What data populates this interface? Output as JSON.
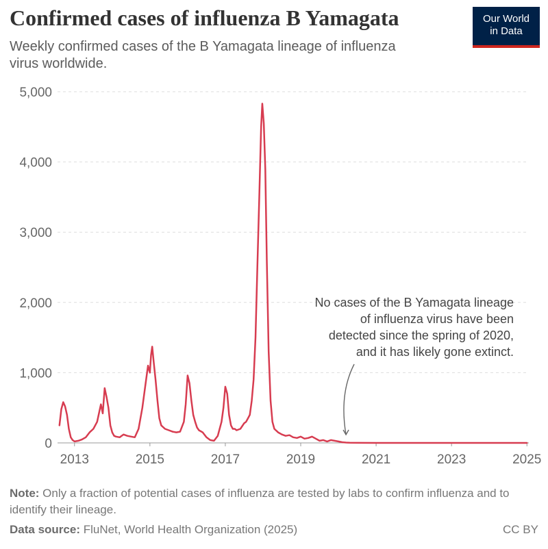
{
  "header": {
    "title": "Confirmed cases of influenza B Yamagata",
    "subtitle": "Weekly confirmed cases of the B Yamagata lineage of influenza virus worldwide.",
    "logo_line1": "Our World",
    "logo_line2": "in Data"
  },
  "footer": {
    "note_label": "Note:",
    "note_text": " Only a fraction of potential cases of influenza are tested by labs to confirm influenza and to identify their lineage.",
    "source_label": "Data source:",
    "source_text": " FluNet, World Health Organization (2025)",
    "license": "CC BY"
  },
  "colors": {
    "series": "#d73c50",
    "grid": "#dddddd",
    "logo_bg": "#002147",
    "logo_accent": "#ce261e"
  },
  "chart_data": {
    "type": "line",
    "title": "Confirmed cases of influenza B Yamagata",
    "subtitle": "Weekly confirmed cases of the B Yamagata lineage of influenza virus worldwide.",
    "xlabel": "",
    "ylabel": "",
    "xlim": [
      2012.55,
      2025.05
    ],
    "ylim": [
      0,
      5000
    ],
    "y_ticks": [
      0,
      1000,
      2000,
      3000,
      4000,
      5000
    ],
    "y_tick_labels": [
      "0",
      "1,000",
      "2,000",
      "3,000",
      "4,000",
      "5,000"
    ],
    "x_ticks": [
      2013,
      2015,
      2017,
      2019,
      2021,
      2023,
      2025
    ],
    "x_tick_labels": [
      "2013",
      "2015",
      "2017",
      "2019",
      "2021",
      "2023",
      "2025"
    ],
    "grid": true,
    "legend": "none",
    "annotation": {
      "lines": [
        "No cases of the B Yamagata lineage",
        "of influenza virus have been",
        "detected since the spring of 2020,",
        "and it has likely gone extinct."
      ],
      "points_to": [
        2020.2,
        0
      ]
    },
    "series": [
      {
        "color": "#d73c50",
        "x": [
          2012.6,
          2012.65,
          2012.7,
          2012.75,
          2012.8,
          2012.85,
          2012.9,
          2012.95,
          2013.0,
          2013.1,
          2013.2,
          2013.3,
          2013.4,
          2013.5,
          2013.6,
          2013.7,
          2013.75,
          2013.8,
          2013.85,
          2013.9,
          2013.95,
          2014.0,
          2014.05,
          2014.1,
          2014.2,
          2014.3,
          2014.4,
          2014.5,
          2014.6,
          2014.7,
          2014.8,
          2014.9,
          2014.95,
          2015.0,
          2015.03,
          2015.06,
          2015.1,
          2015.15,
          2015.2,
          2015.25,
          2015.3,
          2015.4,
          2015.5,
          2015.6,
          2015.7,
          2015.8,
          2015.9,
          2015.95,
          2016.0,
          2016.05,
          2016.1,
          2016.15,
          2016.2,
          2016.25,
          2016.3,
          2016.4,
          2016.5,
          2016.6,
          2016.7,
          2016.8,
          2016.9,
          2016.95,
          2017.0,
          2017.05,
          2017.1,
          2017.15,
          2017.2,
          2017.25,
          2017.3,
          2017.4,
          2017.5,
          2017.55,
          2017.6,
          2017.65,
          2017.7,
          2017.75,
          2017.8,
          2017.85,
          2017.9,
          2017.95,
          2017.98,
          2018.02,
          2018.06,
          2018.1,
          2018.15,
          2018.2,
          2018.25,
          2018.3,
          2018.4,
          2018.5,
          2018.6,
          2018.7,
          2018.8,
          2018.9,
          2019.0,
          2019.1,
          2019.2,
          2019.3,
          2019.4,
          2019.5,
          2019.6,
          2019.7,
          2019.8,
          2019.9,
          2020.0,
          2020.1,
          2020.2,
          2020.3,
          2020.5,
          2021.0,
          2021.5,
          2022.0,
          2022.5,
          2023.0,
          2023.5,
          2024.0,
          2024.5,
          2025.0
        ],
        "y": [
          250,
          480,
          580,
          520,
          400,
          200,
          80,
          40,
          20,
          30,
          50,
          80,
          150,
          200,
          300,
          550,
          420,
          780,
          650,
          500,
          250,
          150,
          100,
          90,
          80,
          120,
          100,
          90,
          80,
          200,
          500,
          900,
          1100,
          1000,
          1250,
          1370,
          1150,
          900,
          600,
          350,
          250,
          200,
          180,
          160,
          150,
          160,
          300,
          550,
          960,
          850,
          600,
          400,
          300,
          220,
          180,
          150,
          80,
          40,
          30,
          100,
          300,
          500,
          800,
          700,
          400,
          250,
          200,
          200,
          180,
          200,
          280,
          300,
          350,
          400,
          600,
          900,
          1500,
          2500,
          3500,
          4500,
          4830,
          4550,
          3900,
          2600,
          1300,
          600,
          300,
          200,
          150,
          120,
          100,
          110,
          80,
          70,
          90,
          60,
          70,
          90,
          60,
          30,
          40,
          20,
          40,
          30,
          20,
          10,
          5,
          2,
          1,
          0,
          0,
          0,
          0,
          0,
          0,
          0,
          0,
          0
        ]
      }
    ]
  }
}
